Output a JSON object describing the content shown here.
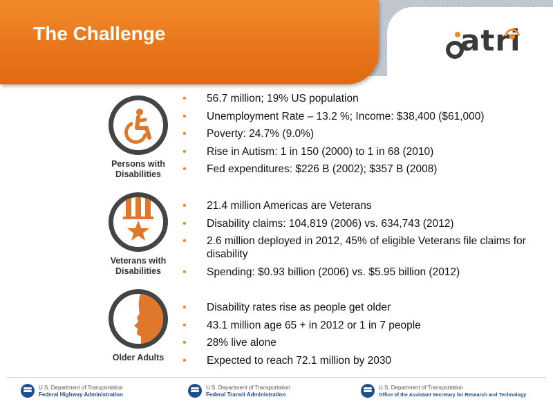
{
  "header": {
    "title": "The Challenge",
    "logo_text": "atri"
  },
  "sections": [
    {
      "icon": "wheelchair-icon",
      "label_line1": "Persons with",
      "label_line2": "Disabilities",
      "bullets": [
        "56.7 million; 19% US population",
        "Unemployment Rate – 13.2 %; Income: $38,400 ($61,000)",
        "Poverty: 24.7% (9.0%)",
        "Rise in Autism: 1 in 150 (2000) to 1 in 68 (2010)",
        "Fed expenditures: $226 B (2002); $357 B (2008)"
      ]
    },
    {
      "icon": "medal-star-icon",
      "label_line1": "Veterans with",
      "label_line2": "Disabilities",
      "bullets": [
        "21.4 million Americas are Veterans",
        "Disability claims: 104,819 (2006) vs. 634,743 (2012)",
        "2.6 million deployed in 2012, 45% of eligible Veterans file claims for disability",
        "Spending: $0.93 billion (2006) vs. $5.95 billion (2012)"
      ]
    },
    {
      "icon": "older-adult-profile-icon",
      "label_line1": "Older Adults",
      "label_line2": "",
      "bullets": [
        "Disability rates rise as people get older",
        "43.1 million age 65 + in 2012 or 1 in 7 people",
        "28% live alone",
        "Expected to reach 72.1 million by 2030"
      ]
    }
  ],
  "footer": {
    "agencies": [
      {
        "dept": "U.S. Department of Transportation",
        "admin": "Federal Highway Administration"
      },
      {
        "dept": "U.S. Department of Transportation",
        "admin": "Federal Transit Administration"
      },
      {
        "dept": "U.S. Department of Transportation",
        "admin": "Office of the Assistant Secretary for Research and Technology"
      }
    ]
  },
  "colors": {
    "accent_orange": "#e8751b",
    "bullet_orange": "#f08a1c",
    "icon_orange": "#e0782b",
    "dot_blue": "#1f4f8f"
  }
}
